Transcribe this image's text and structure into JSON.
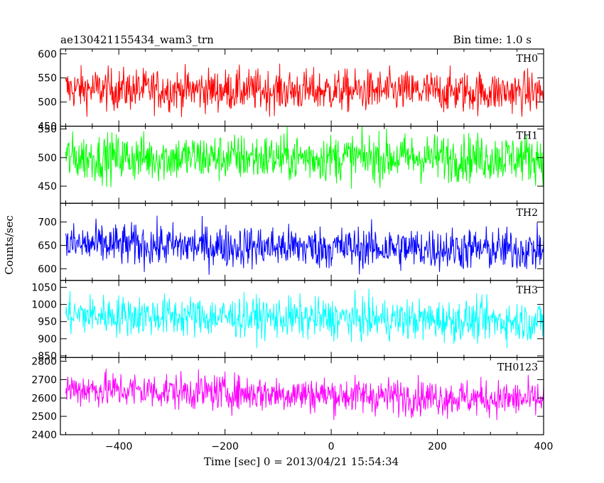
{
  "header": {
    "filename": "ae130421155434_wam3_trn",
    "bin_time": "Bin time: 1.0 s"
  },
  "chart_data": {
    "type": "line",
    "xlabel": "Time [sec] 0 = 2013/04/21 15:54:34",
    "ylabel": "Counts/sec",
    "xlim": [
      -510,
      400
    ],
    "x_ticks": [
      -400,
      -200,
      0,
      200,
      400
    ],
    "x_tick_labels": [
      "−400",
      "−200",
      "0",
      "200",
      "400"
    ],
    "x_start": -500,
    "x_end": 400,
    "x_step": 1,
    "grid": false,
    "panels": [
      {
        "name": "TH0",
        "color": "#ff0000",
        "ylim": [
          450,
          610
        ],
        "yticks": [
          450,
          500,
          550,
          600
        ],
        "ytick_labels": [
          "450",
          "500",
          "550",
          "600"
        ],
        "mean": 527,
        "mean_end": 520,
        "noise": 22
      },
      {
        "name": "TH1",
        "color": "#00ff00",
        "ylim": [
          420,
          555
        ],
        "yticks": [
          450,
          500,
          550
        ],
        "ytick_labels": [
          "450",
          "500",
          "550"
        ],
        "mean": 500,
        "mean_end": 500,
        "noise": 21
      },
      {
        "name": "TH2",
        "color": "#0000ff",
        "ylim": [
          575,
          740
        ],
        "yticks": [
          600,
          650,
          700
        ],
        "ytick_labels": [
          "600",
          "650",
          "700"
        ],
        "mean": 652,
        "mean_end": 640,
        "noise": 23
      },
      {
        "name": "TH3",
        "color": "#00ffff",
        "ylim": [
          845,
          1070
        ],
        "yticks": [
          850,
          900,
          950,
          1000,
          1050
        ],
        "ytick_labels": [
          "850",
          "900",
          "950",
          "1000",
          "1050"
        ],
        "mean": 970,
        "mean_end": 950,
        "noise": 30
      },
      {
        "name": "TH0123",
        "color": "#ff00ff",
        "ylim": [
          2400,
          2820
        ],
        "yticks": [
          2400,
          2500,
          2600,
          2700,
          2800
        ],
        "ytick_labels": [
          "2400",
          "2500",
          "2600",
          "2700",
          "2800"
        ],
        "mean": 2650,
        "mean_end": 2590,
        "noise": 50
      }
    ]
  }
}
